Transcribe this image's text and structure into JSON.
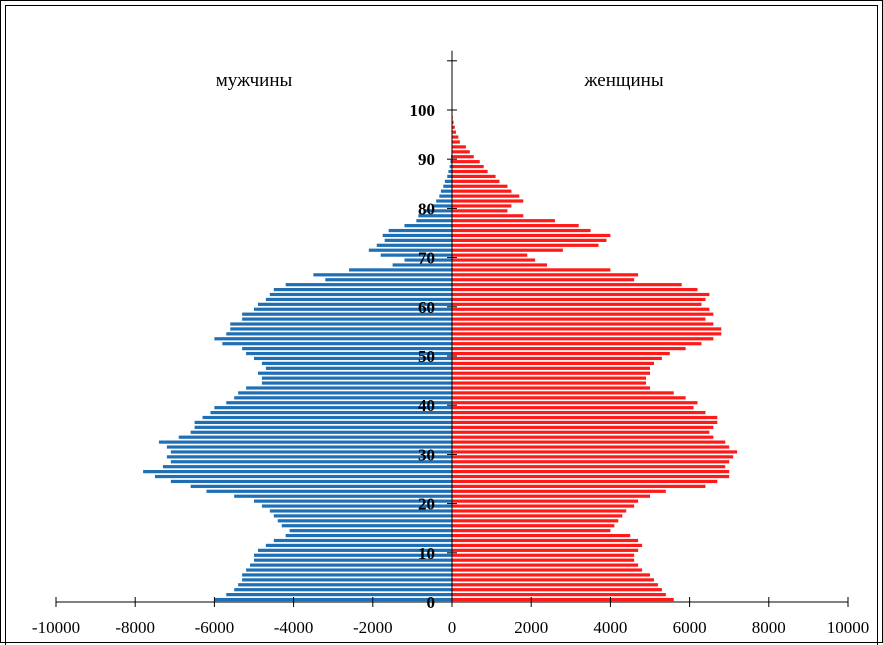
{
  "chart_data": {
    "type": "bar",
    "orientation": "horizontal",
    "title": "",
    "xlim": [
      -10000,
      10000
    ],
    "ylim": [
      0,
      110
    ],
    "x_ticks": [
      -10000,
      -8000,
      -6000,
      -4000,
      -2000,
      0,
      2000,
      4000,
      6000,
      8000,
      10000
    ],
    "x_tick_labels": [
      "-10000",
      "-8000",
      "-6000",
      "-4000",
      "-2000",
      "0",
      "2000",
      "4000",
      "6000",
      "8000",
      "10000"
    ],
    "y_ticks": [
      0,
      10,
      20,
      30,
      40,
      50,
      60,
      70,
      80,
      90,
      100
    ],
    "y_tick_labels": [
      "0",
      "10",
      "20",
      "30",
      "40",
      "50",
      "60",
      "70",
      "80",
      "90",
      "100"
    ],
    "grid": false,
    "ages": [
      0,
      1,
      2,
      3,
      4,
      5,
      6,
      7,
      8,
      9,
      10,
      11,
      12,
      13,
      14,
      15,
      16,
      17,
      18,
      19,
      20,
      21,
      22,
      23,
      24,
      25,
      26,
      27,
      28,
      29,
      30,
      31,
      32,
      33,
      34,
      35,
      36,
      37,
      38,
      39,
      40,
      41,
      42,
      43,
      44,
      45,
      46,
      47,
      48,
      49,
      50,
      51,
      52,
      53,
      54,
      55,
      56,
      57,
      58,
      59,
      60,
      61,
      62,
      63,
      64,
      65,
      66,
      67,
      68,
      69,
      70,
      71,
      72,
      73,
      74,
      75,
      76,
      77,
      78,
      79,
      80,
      81,
      82,
      83,
      84,
      85,
      86,
      87,
      88,
      89,
      90,
      91,
      92,
      93,
      94,
      95,
      96,
      97,
      98,
      99,
      100
    ],
    "series": [
      {
        "name": "мужчины",
        "color": "#1f6fb5",
        "values": [
          6000,
          5700,
          5500,
          5400,
          5300,
          5300,
          5200,
          5100,
          5000,
          5000,
          4900,
          4700,
          4500,
          4200,
          4100,
          4300,
          4400,
          4500,
          4600,
          4800,
          5000,
          5500,
          6200,
          6600,
          7100,
          7500,
          7800,
          7300,
          7100,
          7200,
          7100,
          7200,
          7400,
          6900,
          6600,
          6500,
          6500,
          6300,
          6100,
          6000,
          5700,
          5500,
          5400,
          5200,
          4800,
          4800,
          4900,
          4700,
          4800,
          5000,
          5200,
          5300,
          5800,
          6000,
          5700,
          5600,
          5600,
          5300,
          5300,
          5000,
          4900,
          4700,
          4600,
          4500,
          4200,
          3200,
          3500,
          2600,
          1500,
          1200,
          1800,
          2100,
          1900,
          1700,
          1750,
          1600,
          1200,
          900,
          850,
          700,
          500,
          400,
          320,
          280,
          220,
          180,
          120,
          90,
          60,
          40,
          25,
          15,
          10,
          5,
          5,
          3,
          2,
          1,
          0,
          0,
          0
        ],
        "colors_note": "blue"
      },
      {
        "name": "женщины",
        "color": "#ff1a1a",
        "values": [
          5600,
          5400,
          5300,
          5200,
          5100,
          5000,
          4800,
          4700,
          4600,
          4600,
          4700,
          4800,
          4700,
          4500,
          4000,
          4100,
          4200,
          4300,
          4400,
          4600,
          4700,
          5000,
          5400,
          6400,
          6700,
          7000,
          7000,
          6900,
          7000,
          7100,
          7200,
          7000,
          6900,
          6600,
          6500,
          6600,
          6700,
          6700,
          6400,
          6100,
          6200,
          5900,
          5600,
          5000,
          4900,
          4900,
          5000,
          5000,
          5100,
          5300,
          5500,
          5900,
          6300,
          6600,
          6800,
          6800,
          6600,
          6400,
          6600,
          6500,
          6300,
          6400,
          6500,
          6200,
          5800,
          4600,
          4700,
          4000,
          2400,
          2100,
          1900,
          2800,
          3700,
          3900,
          4000,
          3500,
          3200,
          2600,
          1800,
          1400,
          1500,
          1800,
          1700,
          1500,
          1400,
          1200,
          1100,
          900,
          800,
          700,
          550,
          450,
          350,
          200,
          160,
          100,
          70,
          40,
          20,
          10,
          5
        ],
        "colors_note": "red"
      }
    ],
    "annotations": {
      "left_label": "мужчины",
      "right_label": "женщины"
    }
  }
}
